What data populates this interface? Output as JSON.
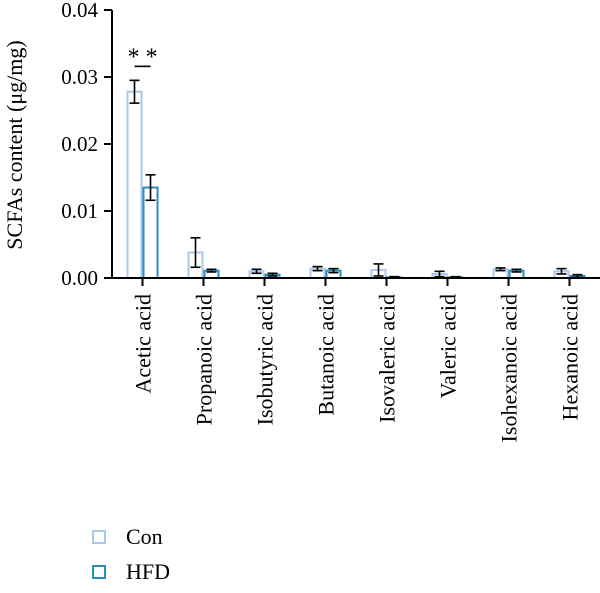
{
  "chart_data": {
    "type": "bar",
    "ylabel": "SCFAs content (μg/mg)",
    "xlabel": "",
    "ylim": [
      0,
      0.04
    ],
    "yticks": [
      "0.00",
      "0.01",
      "0.02",
      "0.03",
      "0.04"
    ],
    "categories": [
      "Acetic acid",
      "Propanoic acid",
      "Isobutyric acid",
      "Butanoic acid",
      "Isovaleric acid",
      "Valeric acid",
      "Isohexanoic acid",
      "Hexanoic acid"
    ],
    "series": [
      {
        "name": "Con",
        "color": "#a9c8ea",
        "values": [
          0.0278,
          0.0038,
          0.001,
          0.0014,
          0.0012,
          0.0006,
          0.0013,
          0.001
        ],
        "errors": [
          0.0017,
          0.0022,
          0.0003,
          0.0003,
          0.0009,
          0.0004,
          0.0002,
          0.0004
        ]
      },
      {
        "name": "HFD",
        "color": "#2b8dbd",
        "values": [
          0.0135,
          0.0011,
          0.0005,
          0.0011,
          0.0001,
          0.0001,
          0.0011,
          0.0003
        ],
        "errors": [
          0.0019,
          0.0002,
          0.0002,
          0.0003,
          0.0001,
          0.0001,
          0.0002,
          0.0002
        ]
      }
    ],
    "annotation": "**",
    "legend_position": "bottom-left",
    "grid": false
  }
}
